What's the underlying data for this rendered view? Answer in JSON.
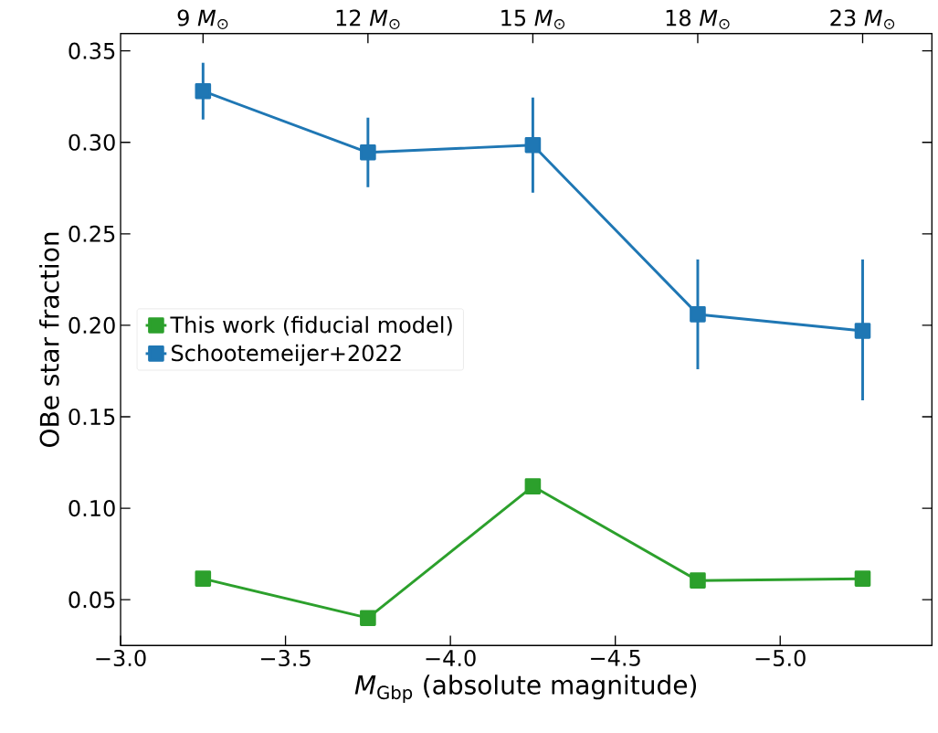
{
  "chart_data": {
    "type": "line",
    "xlabel": "*M*$_{Gbp}$ (absolute magnitude)",
    "ylabel": "OBe star fraction",
    "x": [
      -3.25,
      -3.75,
      -4.25,
      -4.75,
      -5.25
    ],
    "series": [
      {
        "name": "This work (fiducial model)",
        "color": "#2ca02c",
        "values": [
          0.0615,
          0.04,
          0.112,
          0.0605,
          0.0615
        ]
      },
      {
        "name": "Schootemeijer+2022",
        "color": "#1f77b4",
        "values": [
          0.328,
          0.2945,
          0.2985,
          0.206,
          0.197
        ],
        "errors": [
          0.0155,
          0.019,
          0.026,
          0.03,
          [
            0.159,
            0.236
          ]
        ]
      }
    ],
    "xlim": [
      -3.0,
      -5.46
    ],
    "ylim": [
      0.025,
      0.3595
    ],
    "xticks": [
      {
        "value": -3.0,
        "label": "−3.0"
      },
      {
        "value": -3.5,
        "label": "−3.5"
      },
      {
        "value": -4.0,
        "label": "−4.0"
      },
      {
        "value": -4.5,
        "label": "−4.5"
      },
      {
        "value": -5.0,
        "label": "−5.0"
      }
    ],
    "yticks": [
      0.05,
      {
        "value": 0.1,
        "label": "0.10"
      },
      0.15,
      {
        "value": 0.2,
        "label": "0.20"
      },
      0.25,
      {
        "value": 0.3,
        "label": "0.30"
      },
      0.35
    ],
    "annotations": [
      {
        "text": "9 *M*$_{⊙}$",
        "x": -3.25
      },
      {
        "text": "12 *M*$_{⊙}$",
        "x": -3.75
      },
      {
        "text": "15 *M*$_{⊙}$",
        "x": -4.25
      },
      {
        "text": "18 *M*$_{⊙}$",
        "x": -4.75
      },
      {
        "text": "23 *M*$_{⊙}$",
        "x": -5.25
      }
    ],
    "grid": false,
    "legend": "left",
    "marker": "square",
    "line_style": "solid"
  }
}
